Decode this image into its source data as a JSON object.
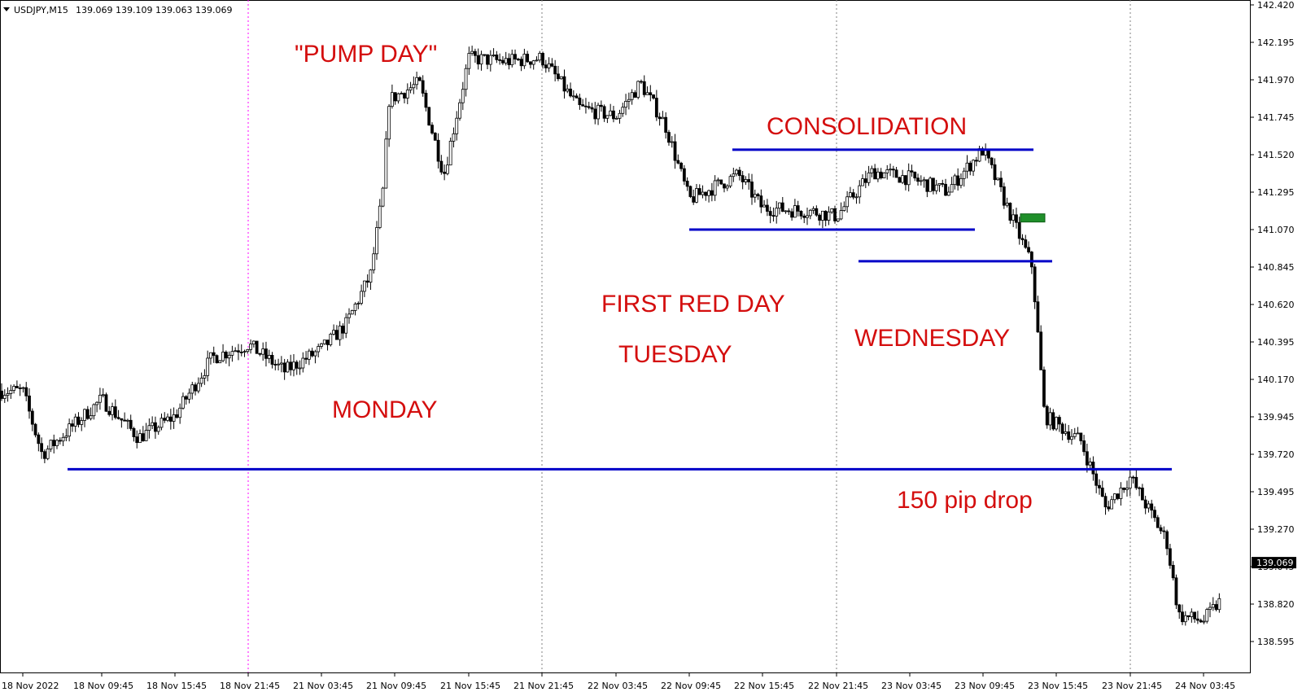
{
  "header": {
    "symbol": "USDJPY,M15",
    "ohlc": "139.069 139.109 139.063 139.069"
  },
  "current_price": "139.069",
  "colors": {
    "up": "#ffffff",
    "down": "#000000",
    "level_line": "#0000c8",
    "annotation": "#d40e0e",
    "entry_box": "#1f8f2a",
    "day_separator": "#808080",
    "week_separator": "#ff00ff"
  },
  "chart_data": {
    "type": "candlestick",
    "timeframe": "M15",
    "ylim": [
      138.48,
      142.43
    ],
    "y_ticks": [
      "142.420",
      "142.195",
      "141.970",
      "141.745",
      "141.520",
      "141.295",
      "141.070",
      "140.845",
      "140.620",
      "140.395",
      "140.170",
      "139.945",
      "139.720",
      "139.495",
      "139.270",
      "139.045",
      "138.820",
      "138.595"
    ],
    "x_ticks": [
      "18 Nov 2022",
      "18 Nov 09:45",
      "18 Nov 15:45",
      "18 Nov 21:45",
      "21 Nov 03:45",
      "21 Nov 09:45",
      "21 Nov 15:45",
      "21 Nov 21:45",
      "22 Nov 03:45",
      "22 Nov 09:45",
      "22 Nov 15:45",
      "22 Nov 21:45",
      "23 Nov 03:45",
      "23 Nov 09:45",
      "23 Nov 15:45",
      "23 Nov 21:45",
      "24 Nov 03:45"
    ],
    "price_path": [
      [
        "18 Nov 2022",
        140.1
      ],
      [
        "18 Nov 03:45",
        139.72
      ],
      [
        "18 Nov 09:45",
        140.05
      ],
      [
        "18 Nov 12:45",
        139.82
      ],
      [
        "18 Nov 15:45",
        139.95
      ],
      [
        "18 Nov 18:45",
        140.3
      ],
      [
        "18 Nov 21:45",
        140.38
      ],
      [
        "21 Nov 00:45",
        140.22
      ],
      [
        "21 Nov 03:45",
        140.35
      ],
      [
        "21 Nov 05:45",
        140.5
      ],
      [
        "21 Nov 07:45",
        140.8
      ],
      [
        "21 Nov 08:45",
        141.3
      ],
      [
        "21 Nov 09:15",
        141.85
      ],
      [
        "21 Nov 11:45",
        141.95
      ],
      [
        "21 Nov 13:45",
        141.4
      ],
      [
        "21 Nov 15:45",
        142.1
      ],
      [
        "21 Nov 18:45",
        142.08
      ],
      [
        "21 Nov 21:45",
        142.1
      ],
      [
        "22 Nov 00:45",
        141.8
      ],
      [
        "22 Nov 03:45",
        141.75
      ],
      [
        "22 Nov 05:45",
        141.95
      ],
      [
        "22 Nov 07:45",
        141.7
      ],
      [
        "22 Nov 09:45",
        141.25
      ],
      [
        "22 Nov 13:45",
        141.4
      ],
      [
        "22 Nov 15:45",
        141.2
      ],
      [
        "22 Nov 19:45",
        141.18
      ],
      [
        "22 Nov 21:45",
        141.15
      ],
      [
        "23 Nov 00:45",
        141.42
      ],
      [
        "23 Nov 03:45",
        141.38
      ],
      [
        "23 Nov 06:45",
        141.3
      ],
      [
        "23 Nov 09:45",
        141.55
      ],
      [
        "23 Nov 11:45",
        141.2
      ],
      [
        "23 Nov 13:45",
        140.85
      ],
      [
        "23 Nov 14:45",
        139.95
      ],
      [
        "23 Nov 17:45",
        139.8
      ],
      [
        "23 Nov 19:45",
        139.4
      ],
      [
        "23 Nov 21:45",
        139.58
      ],
      [
        "24 Nov 00:45",
        139.2
      ],
      [
        "24 Nov 01:45",
        138.75
      ],
      [
        "24 Nov 03:45",
        138.72
      ],
      [
        "24 Nov 05:15",
        138.85
      ]
    ],
    "horizontal_levels": [
      {
        "name": "consolidation-top",
        "price": 141.55
      },
      {
        "name": "consolidation-bottom",
        "price": 141.07
      },
      {
        "name": "wednesday-low",
        "price": 140.88
      },
      {
        "name": "monday-low",
        "price": 139.63
      }
    ],
    "entry_marker_price": 141.14,
    "annotations": [
      {
        "id": "pump-day",
        "text": "\"PUMP DAY\""
      },
      {
        "id": "consolidation",
        "text": "CONSOLIDATION"
      },
      {
        "id": "first-red-day",
        "text": "FIRST RED DAY"
      },
      {
        "id": "tuesday",
        "text": "TUESDAY"
      },
      {
        "id": "wednesday",
        "text": "WEDNESDAY"
      },
      {
        "id": "monday",
        "text": "MONDAY"
      },
      {
        "id": "pip-drop",
        "text": "150 pip drop"
      }
    ]
  }
}
